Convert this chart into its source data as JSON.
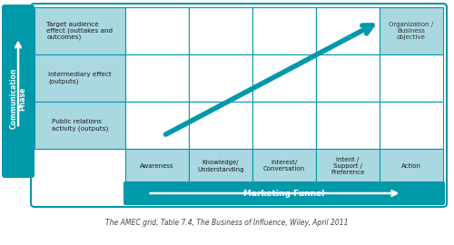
{
  "title_italic": "The AMEC grid, Table 7.4, The Business of Influence, Wiley, April 2011",
  "teal_dark": "#0099AA",
  "teal_light": "#AAD8E0",
  "white": "#FFFFFF",
  "row_labels": [
    "Target audience\neffect (outtakes and\noutcomes)",
    "Intermediary effect\n(outputs)",
    "Public relations\nactivity (outputs)"
  ],
  "col_labels": [
    "Awareness",
    "Knowledge/\nUnderstanding",
    "Interest/\nConversation",
    "Intent /\nSupport /\nPreference",
    "Action"
  ],
  "corner_label": "Organization /\nBusiness\nobjective",
  "comm_phase_label": "Communication\nPhase",
  "marketing_funnel_label": "Marketing Funnel"
}
